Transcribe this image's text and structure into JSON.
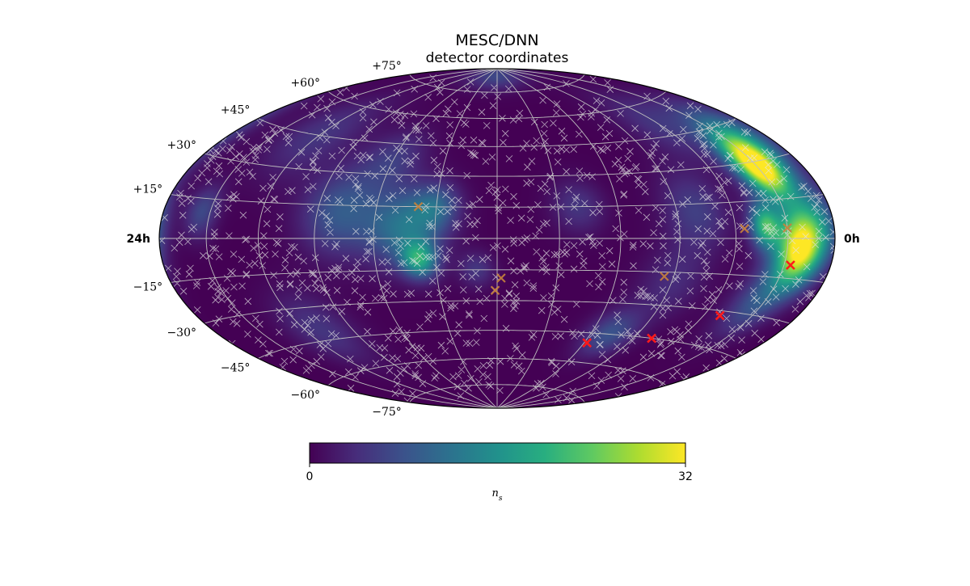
{
  "title": "MESC/DNN",
  "subtitle": "detector coordinates",
  "projection": "hammer",
  "colormap": "viridis",
  "ra_labels": {
    "left": "24h",
    "right": "0h"
  },
  "dec_labels": [
    {
      "dec": 75,
      "text": "+75°"
    },
    {
      "dec": 60,
      "text": "+60°"
    },
    {
      "dec": 45,
      "text": "+45°"
    },
    {
      "dec": 30,
      "text": "+30°"
    },
    {
      "dec": 15,
      "text": "+15°"
    },
    {
      "dec": -15,
      "text": "−15°"
    },
    {
      "dec": -30,
      "text": "−30°"
    },
    {
      "dec": -45,
      "text": "−45°"
    },
    {
      "dec": -60,
      "text": "−60°"
    },
    {
      "dec": -75,
      "text": "−75°"
    }
  ],
  "colorbar": {
    "min_label": "0",
    "max_label": "32",
    "label": "n",
    "label_sub": "s",
    "min": 0,
    "max": 32
  },
  "colors": {
    "marker_red": "#ff1a1a",
    "marker_orange": "#c8823c",
    "grid": "#bfbfbf",
    "background_white_marker": "#e6e6e6"
  },
  "hotspots": [
    {
      "lon": -150,
      "lat": 28,
      "ns": 32,
      "spread": 9
    },
    {
      "lon": -157,
      "lat": -4,
      "ns": 32,
      "spread": 10
    },
    {
      "lon": -137,
      "lat": 5,
      "ns": 20,
      "spread": 6
    },
    {
      "lon": -162,
      "lat": 38,
      "ns": 12,
      "spread": 12
    },
    {
      "lon": -170,
      "lat": 5,
      "ns": 11,
      "spread": 10
    },
    {
      "lon": -145,
      "lat": -25,
      "ns": 8,
      "spread": 10
    },
    {
      "lon": 45,
      "lat": 5,
      "ns": 12,
      "spread": 13
    },
    {
      "lon": 38,
      "lat": -10,
      "ns": 16,
      "spread": 6
    },
    {
      "lon": 30,
      "lat": 15,
      "ns": 8,
      "spread": 8
    },
    {
      "lon": 78,
      "lat": 12,
      "ns": 9,
      "spread": 14
    },
    {
      "lon": -100,
      "lat": 12,
      "ns": 6,
      "spread": 12
    },
    {
      "lon": -72,
      "lat": -45,
      "ns": 8,
      "spread": 8
    },
    {
      "lon": -40,
      "lat": 15,
      "ns": 5,
      "spread": 9
    },
    {
      "lon": 5,
      "lat": 85,
      "ns": 7,
      "spread": 6
    },
    {
      "lon": 10,
      "lat": -15,
      "ns": 5,
      "spread": 6
    },
    {
      "lon": 60,
      "lat": 38,
      "ns": 5,
      "spread": 10
    },
    {
      "lon": 120,
      "lat": 45,
      "ns": 5,
      "spread": 14
    },
    {
      "lon": 155,
      "lat": 10,
      "ns": 7,
      "spread": 7
    },
    {
      "lon": 110,
      "lat": -40,
      "ns": 5,
      "spread": 12
    },
    {
      "lon": -120,
      "lat": 50,
      "ns": 5,
      "spread": 12
    },
    {
      "lon": -90,
      "lat": -20,
      "ns": 4,
      "spread": 12
    }
  ],
  "markers_red": [
    {
      "lon": -154,
      "lat": -10
    },
    {
      "lon": -130,
      "lat": -32
    },
    {
      "lon": -102,
      "lat": -45
    },
    {
      "lon": -62,
      "lat": -50
    }
  ],
  "markers_orange": [
    {
      "lon": -150,
      "lat": 4
    },
    {
      "lon": -125,
      "lat": 4
    },
    {
      "lon": -85,
      "lat": -17
    },
    {
      "lon": 1,
      "lat": -25
    },
    {
      "lon": -2,
      "lat": -19
    },
    {
      "lon": 39,
      "lat": 15
    }
  ]
}
